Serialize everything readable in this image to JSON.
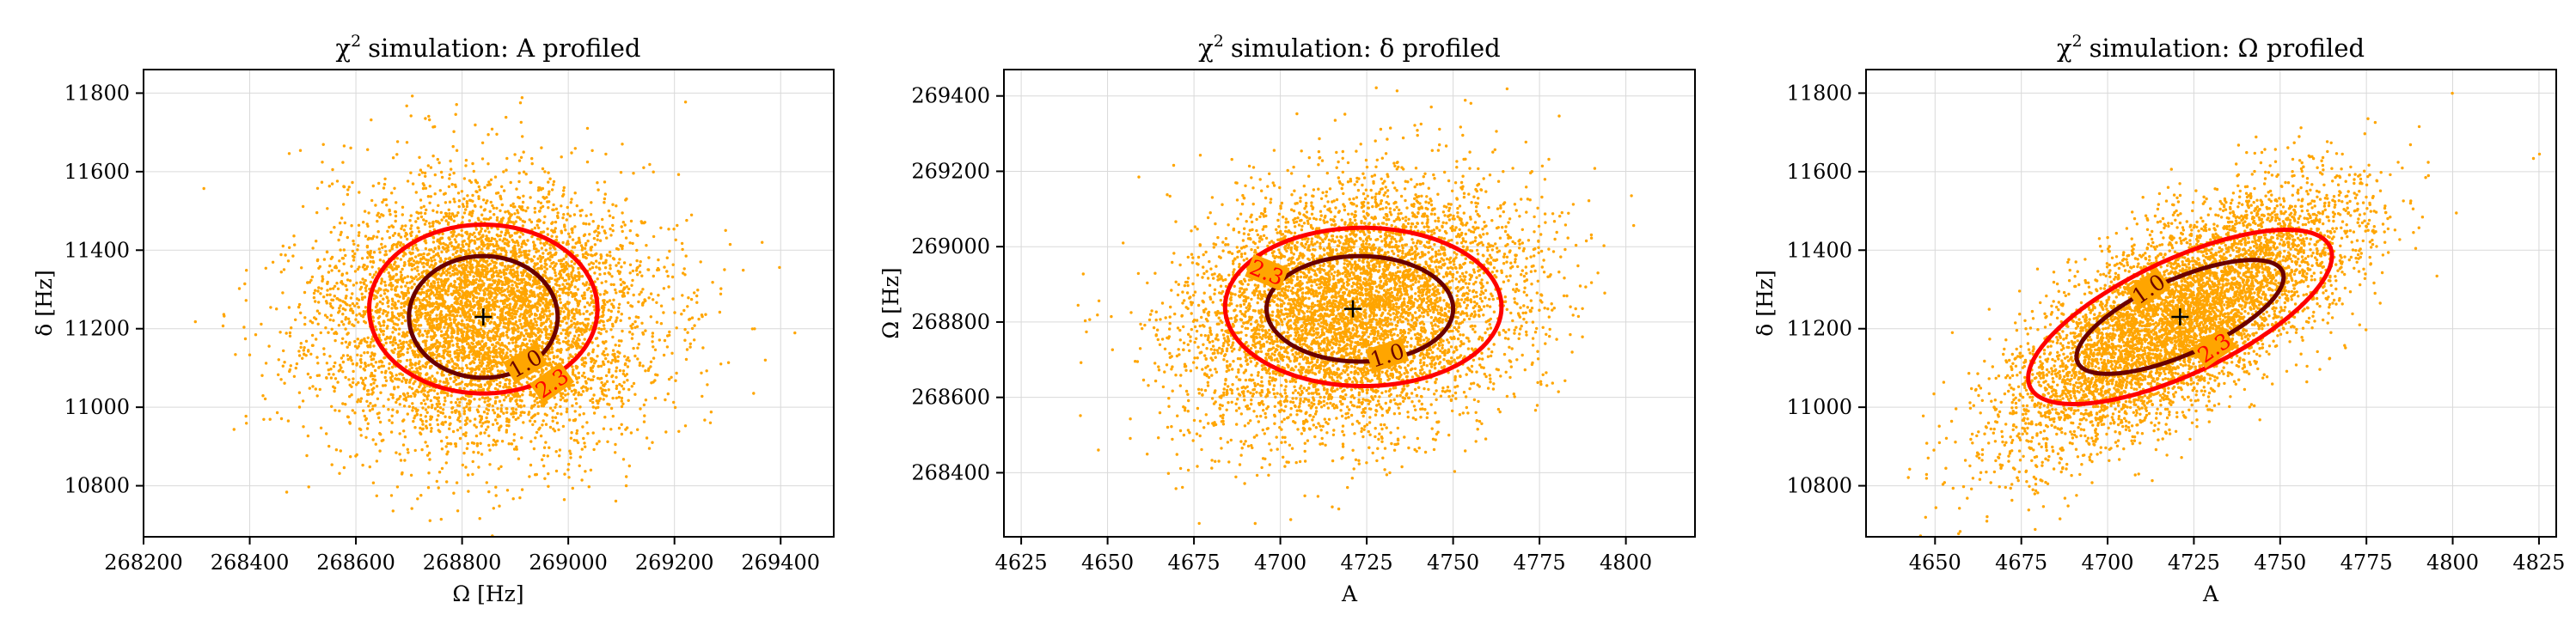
{
  "figure": {
    "background": "#ffffff",
    "point_color": "#ffa500",
    "contour_colors": {
      "1.0": "#6b0000",
      "2.3": "#ff0000"
    },
    "center_marker_color": "#000000"
  },
  "chart_data": [
    {
      "type": "scatter",
      "title_text": "simulation: A profiled",
      "title_symbol": "χ",
      "title_superscript": "2",
      "xlabel": "Ω [Hz]",
      "ylabel": "δ [Hz]",
      "xlim": [
        268200,
        269500
      ],
      "ylim": [
        10670,
        11860
      ],
      "xticks": [
        268200,
        268400,
        268600,
        268800,
        269000,
        269200,
        269400
      ],
      "yticks": [
        10800,
        11000,
        11200,
        11400,
        11600,
        11800
      ],
      "grid": true,
      "center": {
        "x": 268840,
        "y": 11230
      },
      "spread": {
        "sx": 155,
        "sy": 165,
        "rho": 0.0
      },
      "n_points": 6000,
      "contours": [
        {
          "level": "1.0",
          "label": "1.0",
          "cx": 268840,
          "cy": 11230,
          "a": 140,
          "b": 155,
          "angle": 0,
          "label_x": 268920,
          "label_y": 11110,
          "label_angle": -30
        },
        {
          "level": "2.3",
          "label": "2.3",
          "cx": 268840,
          "cy": 11250,
          "a": 215,
          "b": 215,
          "angle": 0,
          "label_x": 268970,
          "label_y": 11060,
          "label_angle": -35
        }
      ]
    },
    {
      "type": "scatter",
      "title_text": "simulation: δ profiled",
      "title_symbol": "χ",
      "title_superscript": "2",
      "xlabel": "A",
      "ylabel": "Ω [Hz]",
      "xlim": [
        4620,
        4820
      ],
      "ylim": [
        268230,
        269470
      ],
      "xticks": [
        4625,
        4650,
        4675,
        4700,
        4725,
        4750,
        4775,
        4800
      ],
      "yticks": [
        268400,
        268600,
        268800,
        269000,
        269200,
        269400
      ],
      "grid": true,
      "center": {
        "x": 4721,
        "y": 268835
      },
      "spread": {
        "sx": 24,
        "sy": 165,
        "rho": 0.2
      },
      "n_points": 6000,
      "contours": [
        {
          "level": "1.0",
          "label": "1.0",
          "cx": 4723,
          "cy": 268835,
          "a": 27,
          "b": 140,
          "angle": 0,
          "label_x": 4731,
          "label_y": 268710,
          "label_angle": -18
        },
        {
          "level": "2.3",
          "label": "2.3",
          "cx": 4724,
          "cy": 268840,
          "a": 40,
          "b": 210,
          "angle": 0,
          "label_x": 4696,
          "label_y": 268930,
          "label_angle": 22
        }
      ]
    },
    {
      "type": "scatter",
      "title_text": "simulation: Ω profiled",
      "title_symbol": "χ",
      "title_superscript": "2",
      "xlabel": "A",
      "ylabel": "δ [Hz]",
      "xlim": [
        4630,
        4830
      ],
      "ylim": [
        10670,
        11860
      ],
      "xticks": [
        4650,
        4675,
        4700,
        4725,
        4750,
        4775,
        4800,
        4825
      ],
      "yticks": [
        10800,
        11000,
        11200,
        11400,
        11600,
        11800
      ],
      "grid": true,
      "center": {
        "x": 4721,
        "y": 11230
      },
      "spread": {
        "sx": 25,
        "sy": 165,
        "rho": 0.72
      },
      "n_points": 6000,
      "contours": [
        {
          "level": "1.0",
          "label": "1.0",
          "cx": 4721,
          "cy": 11230,
          "a": 30,
          "b": 145,
          "angle": 0.7,
          "label_x": 4712,
          "label_y": 11300,
          "label_angle": -35
        },
        {
          "level": "2.3",
          "label": "2.3",
          "cx": 4721,
          "cy": 11230,
          "a": 44,
          "b": 222,
          "angle": 0.7,
          "label_x": 4731,
          "label_y": 11150,
          "label_angle": -35
        }
      ]
    }
  ]
}
